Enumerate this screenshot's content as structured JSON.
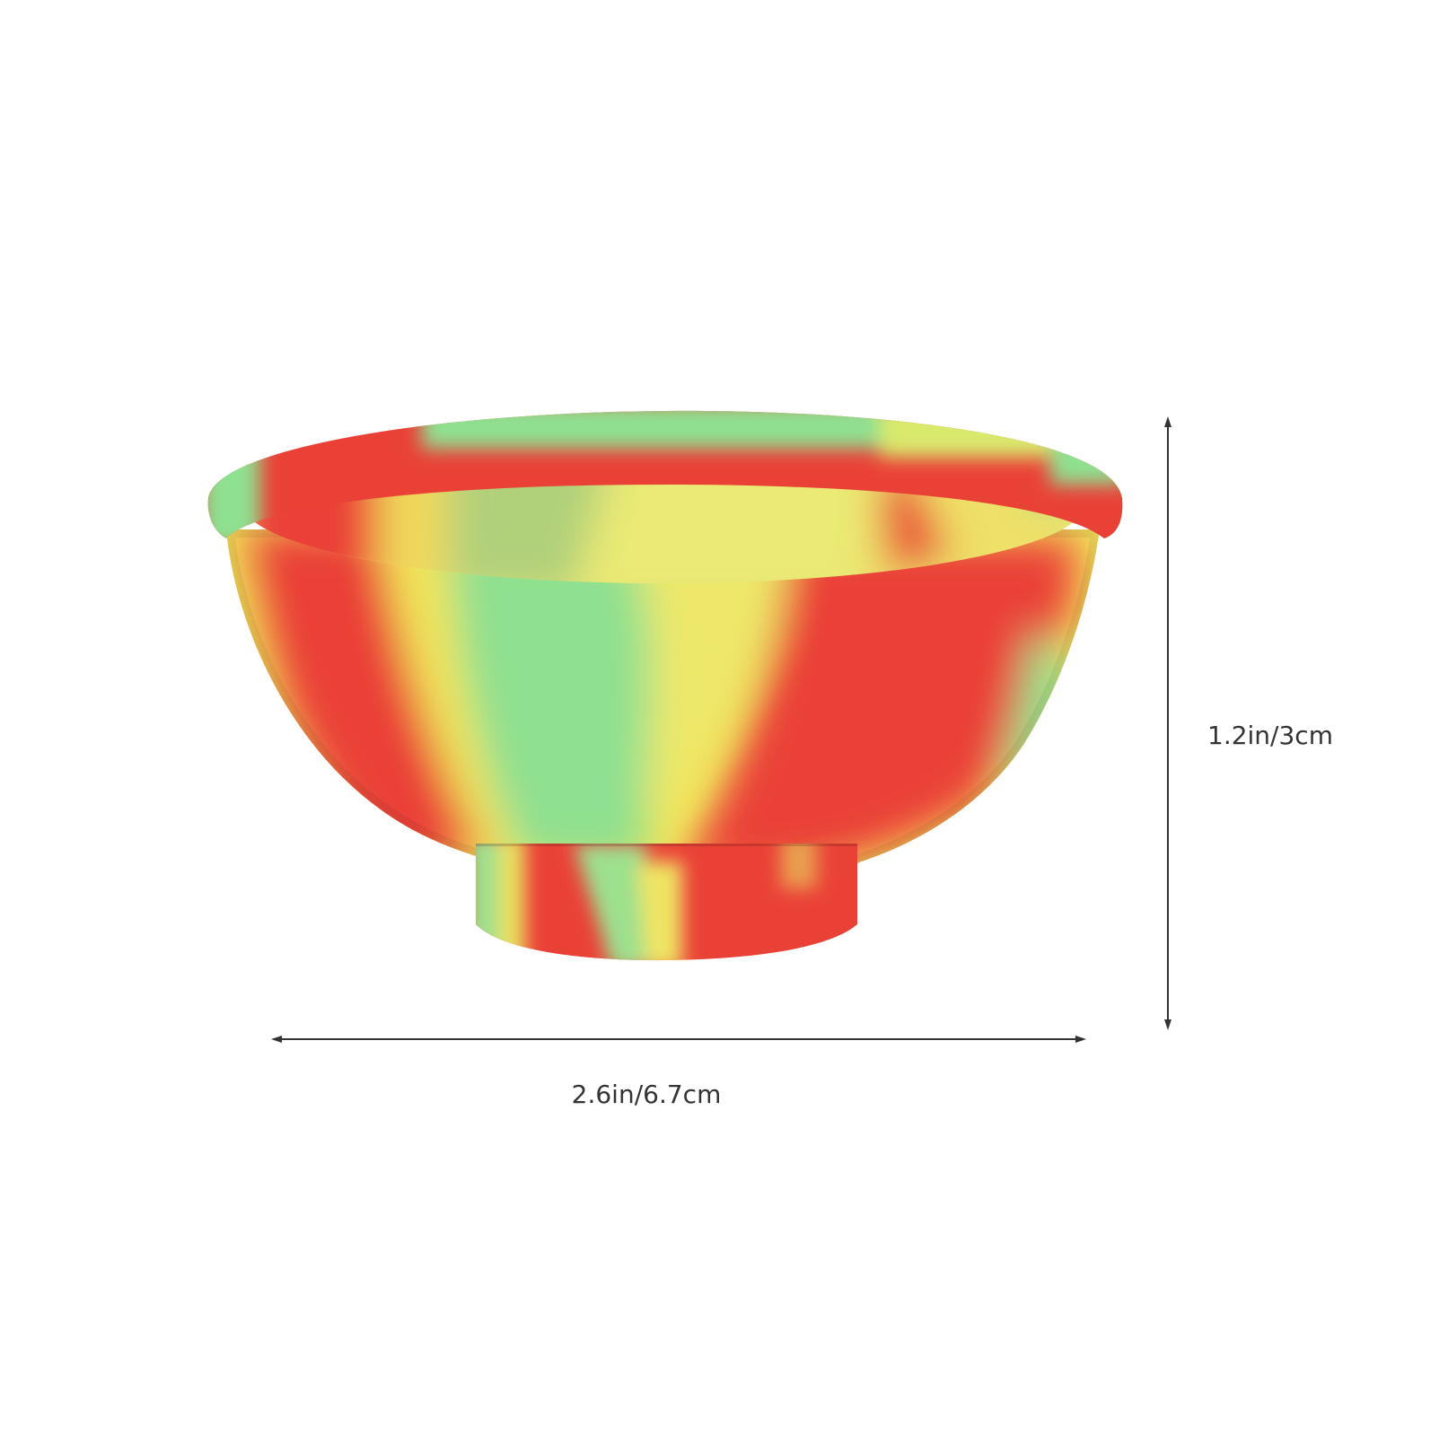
{
  "product": {
    "icon": "silicone-bowl-icon",
    "colors": {
      "red": "#ea4137",
      "yellow": "#f2e65b",
      "green": "#8fe090",
      "background": "#ffffff",
      "dimension_line": "#333333"
    }
  },
  "dimensions": {
    "width_label": "2.6in/6.7cm",
    "height_label": "1.2in/3cm"
  }
}
